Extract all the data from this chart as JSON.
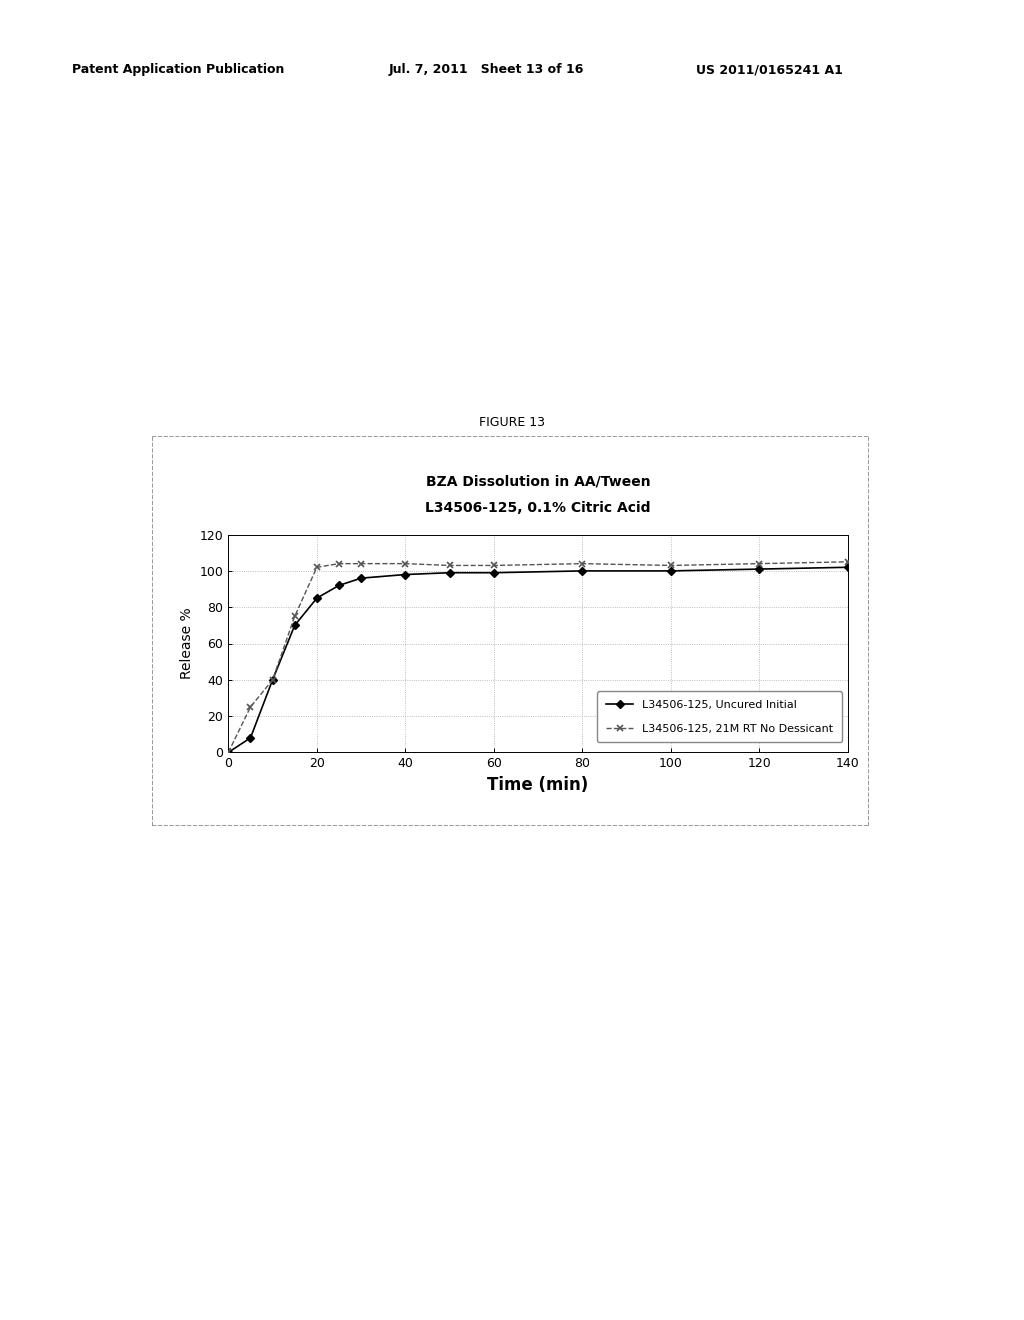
{
  "title_line1": "BZA Dissolution in AA/Tween",
  "title_line2": "L34506-125, 0.1% Citric Acid",
  "figure_label": "FIGURE 13",
  "xlabel": "Time (min)",
  "ylabel": "Release %",
  "xlim": [
    0,
    140
  ],
  "ylim": [
    0,
    120
  ],
  "xticks": [
    0,
    20,
    40,
    60,
    80,
    100,
    120,
    140
  ],
  "yticks": [
    0,
    20,
    40,
    60,
    80,
    100,
    120
  ],
  "header_left": "Patent Application Publication",
  "header_mid": "Jul. 7, 2011   Sheet 13 of 16",
  "header_right": "US 2011/0165241 A1",
  "series1_label": "L34506-125, Uncured Initial",
  "series2_label": "L34506-125, 21M RT No Dessicant",
  "series1_x": [
    0,
    5,
    10,
    15,
    20,
    25,
    30,
    40,
    50,
    60,
    80,
    100,
    120,
    140
  ],
  "series1_y": [
    0,
    8,
    40,
    70,
    85,
    92,
    96,
    98,
    99,
    99,
    100,
    100,
    101,
    102
  ],
  "series2_x": [
    0,
    5,
    10,
    15,
    20,
    25,
    30,
    40,
    50,
    60,
    80,
    100,
    120,
    140
  ],
  "series2_y": [
    0,
    25,
    40,
    75,
    102,
    104,
    104,
    104,
    103,
    103,
    104,
    103,
    104,
    105
  ],
  "series1_color": "#000000",
  "series2_color": "#555555",
  "background_color": "#ffffff",
  "plot_bg_color": "#ffffff",
  "grid_color": "#aaaaaa",
  "border_color": "#000000",
  "outer_box_color": "#888888",
  "fig_label_fontsize": 9,
  "title_fontsize": 10,
  "axis_label_fontsize": 10,
  "xlabel_fontsize": 12,
  "tick_fontsize": 9,
  "legend_fontsize": 8,
  "header_fontsize": 9
}
